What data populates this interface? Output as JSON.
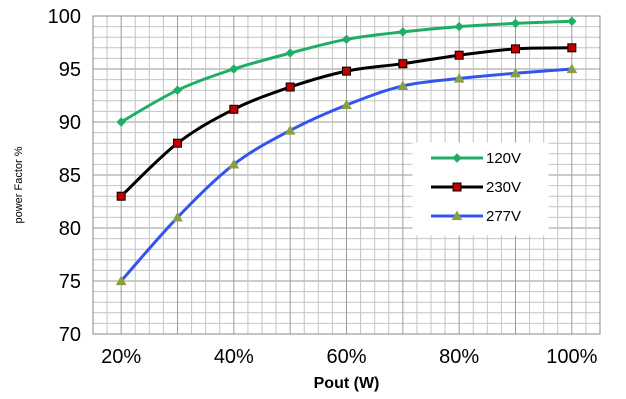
{
  "chart_data": {
    "type": "line",
    "title": "",
    "xlabel": "Pout (W)",
    "ylabel": "power Factor %",
    "x": [
      20,
      30,
      40,
      50,
      60,
      70,
      80,
      90,
      100
    ],
    "x_tick_values": [
      20,
      40,
      60,
      80,
      100
    ],
    "x_tick_labels": [
      "20%",
      "40%",
      "60%",
      "80%",
      "100%"
    ],
    "x_range": [
      15,
      105
    ],
    "y_ticks": [
      70,
      75,
      80,
      85,
      90,
      95,
      100
    ],
    "ylim": [
      70,
      100
    ],
    "grid": true,
    "legend_position": "right-middle",
    "series": [
      {
        "name": "120V",
        "color": "#1fae66",
        "marker": "diamond",
        "values": [
          90.0,
          93.0,
          95.0,
          96.5,
          97.8,
          98.5,
          99.0,
          99.3,
          99.5
        ]
      },
      {
        "name": "230V",
        "color": "#000000",
        "marker": "square",
        "marker_fill": "#c00000",
        "values": [
          83.0,
          88.0,
          91.2,
          93.3,
          94.8,
          95.5,
          96.3,
          96.9,
          97.0
        ]
      },
      {
        "name": "277V",
        "color": "#3355ee",
        "marker": "triangle",
        "marker_fill": "#8aa040",
        "values": [
          75.0,
          81.0,
          86.0,
          89.2,
          91.6,
          93.4,
          94.1,
          94.6,
          95.0
        ]
      }
    ]
  }
}
